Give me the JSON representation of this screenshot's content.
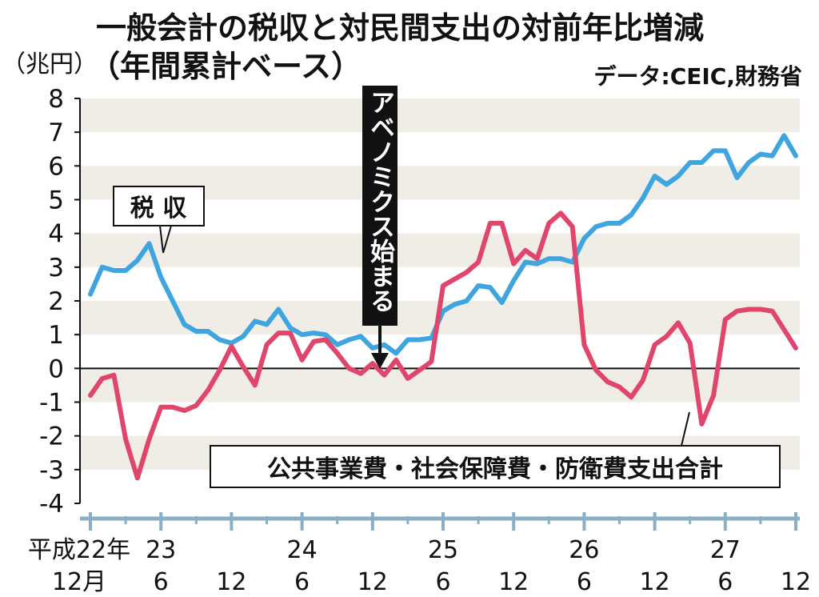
{
  "chart_data": {
    "type": "line",
    "title": "一般会計の税収と対民間支出の対前年比増減",
    "subtitle": "（年間累計ベース）",
    "ylabel": "（兆円）",
    "source": "データ:CEIC,財務省",
    "ylim": [
      -4,
      8
    ],
    "yticks": [
      "8",
      "7",
      "6",
      "5",
      "4",
      "3",
      "2",
      "1",
      "0",
      "-1",
      "-2",
      "-3",
      "-4"
    ],
    "grid": "alternating horizontal bands",
    "x_tick_labels": [
      {
        "top": "平成22年",
        "bottom": "12月"
      },
      {
        "top": "23",
        "bottom": "6"
      },
      {
        "top": "",
        "bottom": "12"
      },
      {
        "top": "24",
        "bottom": "6"
      },
      {
        "top": "",
        "bottom": "12"
      },
      {
        "top": "25",
        "bottom": "6"
      },
      {
        "top": "",
        "bottom": "12"
      },
      {
        "top": "26",
        "bottom": "6"
      },
      {
        "top": "",
        "bottom": "12"
      },
      {
        "top": "27",
        "bottom": "6"
      },
      {
        "top": "",
        "bottom": "12"
      }
    ],
    "x_start": "2010-12",
    "x_end": "2015-12",
    "annotation": "アベノミクス始まる",
    "annotation_x": "2012-12",
    "series": [
      {
        "name": "税 収",
        "color": "#3ea5e0",
        "values": [
          2.2,
          3.0,
          2.9,
          2.9,
          3.2,
          3.7,
          2.7,
          2.0,
          1.3,
          1.1,
          1.1,
          0.85,
          0.75,
          0.95,
          1.4,
          1.3,
          1.75,
          1.2,
          1.0,
          1.05,
          1.0,
          0.7,
          0.85,
          0.95,
          0.6,
          0.7,
          0.45,
          0.85,
          0.85,
          0.9,
          1.7,
          1.9,
          2.0,
          2.45,
          2.4,
          1.95,
          2.6,
          3.15,
          3.1,
          3.25,
          3.25,
          3.15,
          3.85,
          4.2,
          4.3,
          4.3,
          4.55,
          5.05,
          5.7,
          5.45,
          5.7,
          6.1,
          6.1,
          6.45,
          6.45,
          5.65,
          6.1,
          6.35,
          6.3,
          6.9,
          6.3
        ]
      },
      {
        "name": "公共事業費・社会保障費・防衛費支出合計",
        "color": "#e0456c",
        "values": [
          -0.8,
          -0.3,
          -0.2,
          -2.1,
          -3.25,
          -2.1,
          -1.15,
          -1.15,
          -1.25,
          -1.1,
          -0.65,
          -0.05,
          0.65,
          0.05,
          -0.5,
          0.7,
          1.05,
          1.05,
          0.25,
          0.8,
          0.85,
          0.45,
          0.0,
          -0.15,
          0.15,
          -0.2,
          0.25,
          -0.3,
          -0.05,
          0.2,
          2.45,
          2.65,
          2.85,
          3.15,
          4.3,
          4.3,
          3.1,
          3.5,
          3.25,
          4.3,
          4.6,
          4.2,
          0.7,
          -0.05,
          -0.4,
          -0.55,
          -0.85,
          -0.35,
          0.7,
          0.95,
          1.35,
          0.75,
          -1.65,
          -0.8,
          1.45,
          1.7,
          1.75,
          1.75,
          1.7,
          1.15,
          0.6
        ]
      }
    ],
    "series_labels": [
      "税 収",
      "公共事業費・社会保障費・防衛費支出合計"
    ]
  }
}
